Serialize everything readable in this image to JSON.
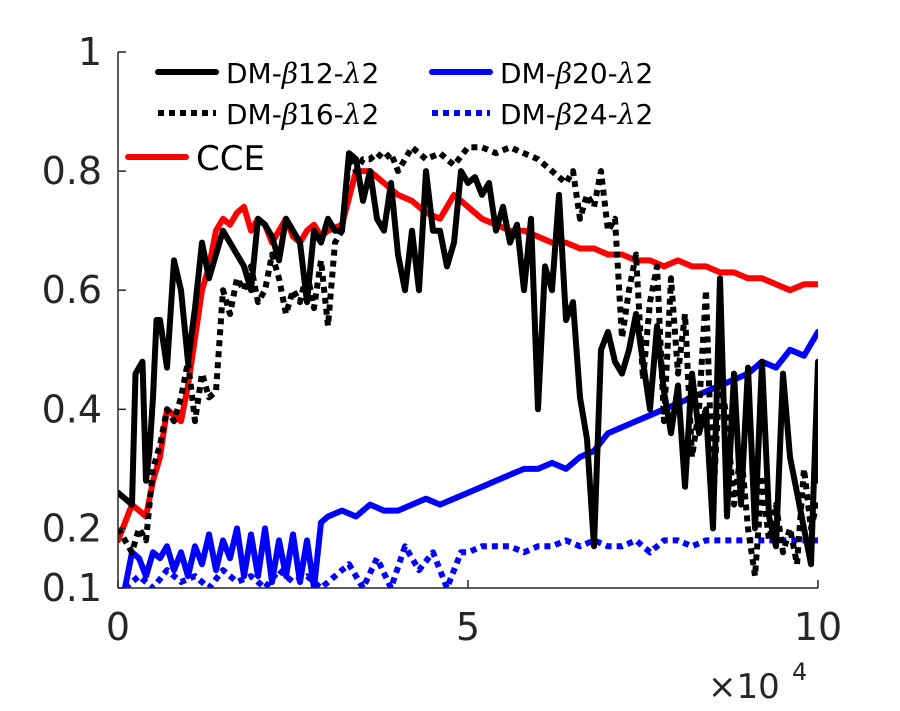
{
  "chart_data": {
    "type": "line",
    "title": "",
    "xlabel": "",
    "ylabel": "",
    "xlim": [
      0,
      10
    ],
    "ylim": [
      0.1,
      1
    ],
    "x_multiplier_label": "×10",
    "x_multiplier_exponent": "4",
    "x_ticks": [
      {
        "value": 0,
        "label": "0"
      },
      {
        "value": 5,
        "label": "5"
      },
      {
        "value": 10,
        "label": "10"
      }
    ],
    "y_ticks": [
      {
        "value": 0.1,
        "label": "0.1"
      },
      {
        "value": 0.2,
        "label": "0.2"
      },
      {
        "value": 0.4,
        "label": "0.4"
      },
      {
        "value": 0.6,
        "label": "0.6"
      },
      {
        "value": 0.8,
        "label": "0.8"
      },
      {
        "value": 1,
        "label": "1"
      }
    ],
    "grid": false,
    "legend_position": "top-left",
    "series": [
      {
        "name": "DM-β12-λ2",
        "legend_prefix": "DM-",
        "legend_mid": "12-",
        "legend_suffix": "2",
        "color": "#000000",
        "dash": "solid",
        "x": [
          0.0,
          0.2,
          0.25,
          0.3,
          0.35,
          0.4,
          0.45,
          0.5,
          0.55,
          0.6,
          0.7,
          0.8,
          0.9,
          1.0,
          1.1,
          1.2,
          1.3,
          1.4,
          1.5,
          1.6,
          1.7,
          1.8,
          1.9,
          2.0,
          2.1,
          2.2,
          2.3,
          2.4,
          2.5,
          2.6,
          2.7,
          2.8,
          2.9,
          3.0,
          3.1,
          3.2,
          3.3,
          3.4,
          3.5,
          3.6,
          3.7,
          3.8,
          3.9,
          4.0,
          4.1,
          4.2,
          4.3,
          4.4,
          4.5,
          4.6,
          4.7,
          4.8,
          4.9,
          5.0,
          5.1,
          5.2,
          5.3,
          5.4,
          5.5,
          5.6,
          5.7,
          5.8,
          5.9,
          6.0,
          6.1,
          6.2,
          6.3,
          6.4,
          6.5,
          6.6,
          6.7,
          6.8,
          6.9,
          7.0,
          7.1,
          7.2,
          7.3,
          7.4,
          7.5,
          7.6,
          7.7,
          7.8,
          7.9,
          8.0,
          8.1,
          8.2,
          8.3,
          8.4,
          8.5,
          8.6,
          8.7,
          8.8,
          8.9,
          9.0,
          9.1,
          9.2,
          9.3,
          9.4,
          9.5,
          9.6,
          9.7,
          9.8,
          9.9,
          10.0
        ],
        "y": [
          0.26,
          0.24,
          0.46,
          0.47,
          0.48,
          0.28,
          0.33,
          0.42,
          0.55,
          0.55,
          0.47,
          0.65,
          0.6,
          0.48,
          0.57,
          0.68,
          0.62,
          0.66,
          0.7,
          0.68,
          0.66,
          0.64,
          0.6,
          0.72,
          0.71,
          0.69,
          0.65,
          0.72,
          0.7,
          0.68,
          0.58,
          0.7,
          0.68,
          0.72,
          0.7,
          0.7,
          0.83,
          0.82,
          0.75,
          0.8,
          0.72,
          0.7,
          0.78,
          0.66,
          0.6,
          0.7,
          0.6,
          0.8,
          0.7,
          0.7,
          0.64,
          0.68,
          0.8,
          0.78,
          0.79,
          0.76,
          0.78,
          0.7,
          0.74,
          0.68,
          0.71,
          0.6,
          0.72,
          0.4,
          0.64,
          0.6,
          0.76,
          0.55,
          0.58,
          0.42,
          0.35,
          0.17,
          0.5,
          0.53,
          0.48,
          0.46,
          0.5,
          0.56,
          0.48,
          0.4,
          0.54,
          0.43,
          0.36,
          0.44,
          0.27,
          0.46,
          0.36,
          0.4,
          0.2,
          0.62,
          0.22,
          0.46,
          0.24,
          0.47,
          0.2,
          0.48,
          0.22,
          0.17,
          0.46,
          0.32,
          0.26,
          0.2,
          0.14,
          0.48
        ],
        "y_end": 0.28
      },
      {
        "name": "DM-β16-λ2",
        "legend_prefix": "DM-",
        "legend_mid": "16-",
        "legend_suffix": "2",
        "color": "#000000",
        "dash": "dotted",
        "x": [
          0.0,
          0.2,
          0.3,
          0.4,
          0.5,
          0.6,
          0.7,
          0.8,
          0.9,
          1.0,
          1.1,
          1.2,
          1.3,
          1.4,
          1.5,
          1.6,
          1.7,
          1.8,
          1.9,
          2.0,
          2.1,
          2.2,
          2.3,
          2.4,
          2.5,
          2.6,
          2.7,
          2.8,
          2.9,
          3.0,
          3.1,
          3.2,
          3.3,
          3.4,
          3.5,
          3.6,
          3.7,
          3.8,
          3.9,
          4.0,
          4.2,
          4.4,
          4.6,
          4.8,
          5.0,
          5.2,
          5.4,
          5.6,
          5.8,
          6.0,
          6.2,
          6.4,
          6.5,
          6.6,
          6.7,
          6.8,
          6.9,
          7.0,
          7.1,
          7.2,
          7.3,
          7.4,
          7.5,
          7.6,
          7.7,
          7.8,
          7.9,
          8.0,
          8.1,
          8.2,
          8.3,
          8.4,
          8.5,
          8.6,
          8.7,
          8.8,
          8.9,
          9.0,
          9.1,
          9.2,
          9.3,
          9.4,
          9.5,
          9.6,
          9.7,
          9.8,
          9.9,
          10.0
        ],
        "y": [
          0.2,
          0.16,
          0.2,
          0.18,
          0.3,
          0.34,
          0.4,
          0.38,
          0.42,
          0.48,
          0.38,
          0.46,
          0.42,
          0.43,
          0.6,
          0.56,
          0.62,
          0.6,
          0.64,
          0.58,
          0.6,
          0.66,
          0.62,
          0.56,
          0.6,
          0.58,
          0.63,
          0.57,
          0.65,
          0.54,
          0.68,
          0.7,
          0.82,
          0.8,
          0.82,
          0.82,
          0.83,
          0.82,
          0.83,
          0.8,
          0.84,
          0.82,
          0.83,
          0.81,
          0.84,
          0.84,
          0.83,
          0.84,
          0.83,
          0.82,
          0.8,
          0.78,
          0.8,
          0.72,
          0.76,
          0.74,
          0.8,
          0.7,
          0.72,
          0.52,
          0.6,
          0.66,
          0.45,
          0.58,
          0.64,
          0.38,
          0.62,
          0.46,
          0.56,
          0.32,
          0.4,
          0.6,
          0.24,
          0.46,
          0.38,
          0.24,
          0.33,
          0.2,
          0.12,
          0.28,
          0.18,
          0.24,
          0.16,
          0.2,
          0.14,
          0.3,
          0.2,
          0.25
        ]
      },
      {
        "name": "DM-β20-λ2",
        "legend_prefix": "DM-",
        "legend_mid": "20-",
        "legend_suffix": "2",
        "color": "#0000ff",
        "dash": "solid",
        "x": [
          0.1,
          0.2,
          0.3,
          0.4,
          0.5,
          0.6,
          0.7,
          0.8,
          0.9,
          1.0,
          1.1,
          1.2,
          1.3,
          1.4,
          1.5,
          1.6,
          1.7,
          1.8,
          1.9,
          2.0,
          2.1,
          2.2,
          2.3,
          2.4,
          2.5,
          2.6,
          2.7,
          2.8,
          2.9,
          3.0,
          3.2,
          3.4,
          3.6,
          3.8,
          4.0,
          4.2,
          4.4,
          4.6,
          4.8,
          5.0,
          5.2,
          5.4,
          5.6,
          5.8,
          6.0,
          6.2,
          6.4,
          6.6,
          6.8,
          7.0,
          7.2,
          7.4,
          7.6,
          7.8,
          8.0,
          8.2,
          8.4,
          8.6,
          8.8,
          9.0,
          9.2,
          9.4,
          9.6,
          9.8,
          10.0
        ],
        "y": [
          0.1,
          0.16,
          0.15,
          0.12,
          0.16,
          0.15,
          0.17,
          0.13,
          0.16,
          0.12,
          0.17,
          0.14,
          0.19,
          0.13,
          0.18,
          0.15,
          0.2,
          0.12,
          0.19,
          0.12,
          0.2,
          0.11,
          0.18,
          0.12,
          0.19,
          0.11,
          0.18,
          0.1,
          0.21,
          0.22,
          0.23,
          0.22,
          0.24,
          0.23,
          0.23,
          0.24,
          0.25,
          0.24,
          0.25,
          0.26,
          0.27,
          0.28,
          0.29,
          0.3,
          0.3,
          0.31,
          0.3,
          0.32,
          0.33,
          0.36,
          0.37,
          0.38,
          0.39,
          0.4,
          0.41,
          0.42,
          0.43,
          0.44,
          0.45,
          0.46,
          0.48,
          0.47,
          0.5,
          0.49,
          0.53
        ]
      },
      {
        "name": "DM-β24-λ2",
        "legend_prefix": "DM-",
        "legend_mid": "24-",
        "legend_suffix": "2",
        "color": "#0000ff",
        "dash": "dotted",
        "x": [
          0.1,
          0.3,
          0.5,
          0.7,
          0.9,
          1.1,
          1.3,
          1.5,
          1.7,
          1.9,
          2.1,
          2.3,
          2.5,
          2.7,
          2.9,
          3.1,
          3.3,
          3.5,
          3.7,
          3.9,
          4.1,
          4.3,
          4.5,
          4.7,
          4.9,
          5.0,
          5.2,
          5.4,
          5.6,
          5.8,
          6.0,
          6.2,
          6.4,
          6.6,
          6.8,
          7.0,
          7.2,
          7.4,
          7.6,
          7.8,
          8.0,
          8.2,
          8.4,
          8.6,
          8.8,
          9.0,
          9.2,
          9.4,
          9.6,
          9.8,
          10.0
        ],
        "y": [
          0.1,
          0.12,
          0.1,
          0.13,
          0.11,
          0.12,
          0.1,
          0.13,
          0.11,
          0.12,
          0.1,
          0.13,
          0.11,
          0.12,
          0.1,
          0.12,
          0.14,
          0.1,
          0.15,
          0.1,
          0.17,
          0.13,
          0.16,
          0.1,
          0.16,
          0.16,
          0.17,
          0.17,
          0.17,
          0.16,
          0.17,
          0.17,
          0.18,
          0.17,
          0.18,
          0.17,
          0.17,
          0.18,
          0.16,
          0.18,
          0.18,
          0.17,
          0.18,
          0.18,
          0.18,
          0.18,
          0.18,
          0.18,
          0.18,
          0.18,
          0.18
        ]
      },
      {
        "name": "CCE",
        "legend_prefix": "CCE",
        "legend_mid": "",
        "legend_suffix": "",
        "color": "#ff0000",
        "dash": "solid",
        "x": [
          0.0,
          0.2,
          0.4,
          0.5,
          0.6,
          0.7,
          0.8,
          0.9,
          1.0,
          1.1,
          1.2,
          1.3,
          1.4,
          1.5,
          1.6,
          1.7,
          1.8,
          1.9,
          2.0,
          2.1,
          2.2,
          2.3,
          2.4,
          2.5,
          2.6,
          2.7,
          2.8,
          2.9,
          3.0,
          3.2,
          3.4,
          3.6,
          3.8,
          4.0,
          4.2,
          4.4,
          4.6,
          4.8,
          5.0,
          5.2,
          5.4,
          5.6,
          5.8,
          6.0,
          6.2,
          6.4,
          6.6,
          6.8,
          7.0,
          7.2,
          7.4,
          7.6,
          7.8,
          8.0,
          8.2,
          8.4,
          8.6,
          8.8,
          9.0,
          9.2,
          9.4,
          9.6,
          9.8,
          10.0
        ],
        "y": [
          0.18,
          0.24,
          0.22,
          0.28,
          0.32,
          0.4,
          0.39,
          0.38,
          0.44,
          0.52,
          0.6,
          0.64,
          0.7,
          0.72,
          0.71,
          0.73,
          0.74,
          0.7,
          0.72,
          0.71,
          0.68,
          0.7,
          0.72,
          0.69,
          0.68,
          0.7,
          0.71,
          0.69,
          0.7,
          0.71,
          0.8,
          0.8,
          0.78,
          0.76,
          0.75,
          0.73,
          0.72,
          0.76,
          0.74,
          0.72,
          0.71,
          0.7,
          0.7,
          0.69,
          0.68,
          0.68,
          0.67,
          0.67,
          0.66,
          0.66,
          0.65,
          0.65,
          0.64,
          0.65,
          0.64,
          0.64,
          0.63,
          0.63,
          0.62,
          0.62,
          0.61,
          0.6,
          0.61,
          0.61
        ]
      }
    ]
  }
}
